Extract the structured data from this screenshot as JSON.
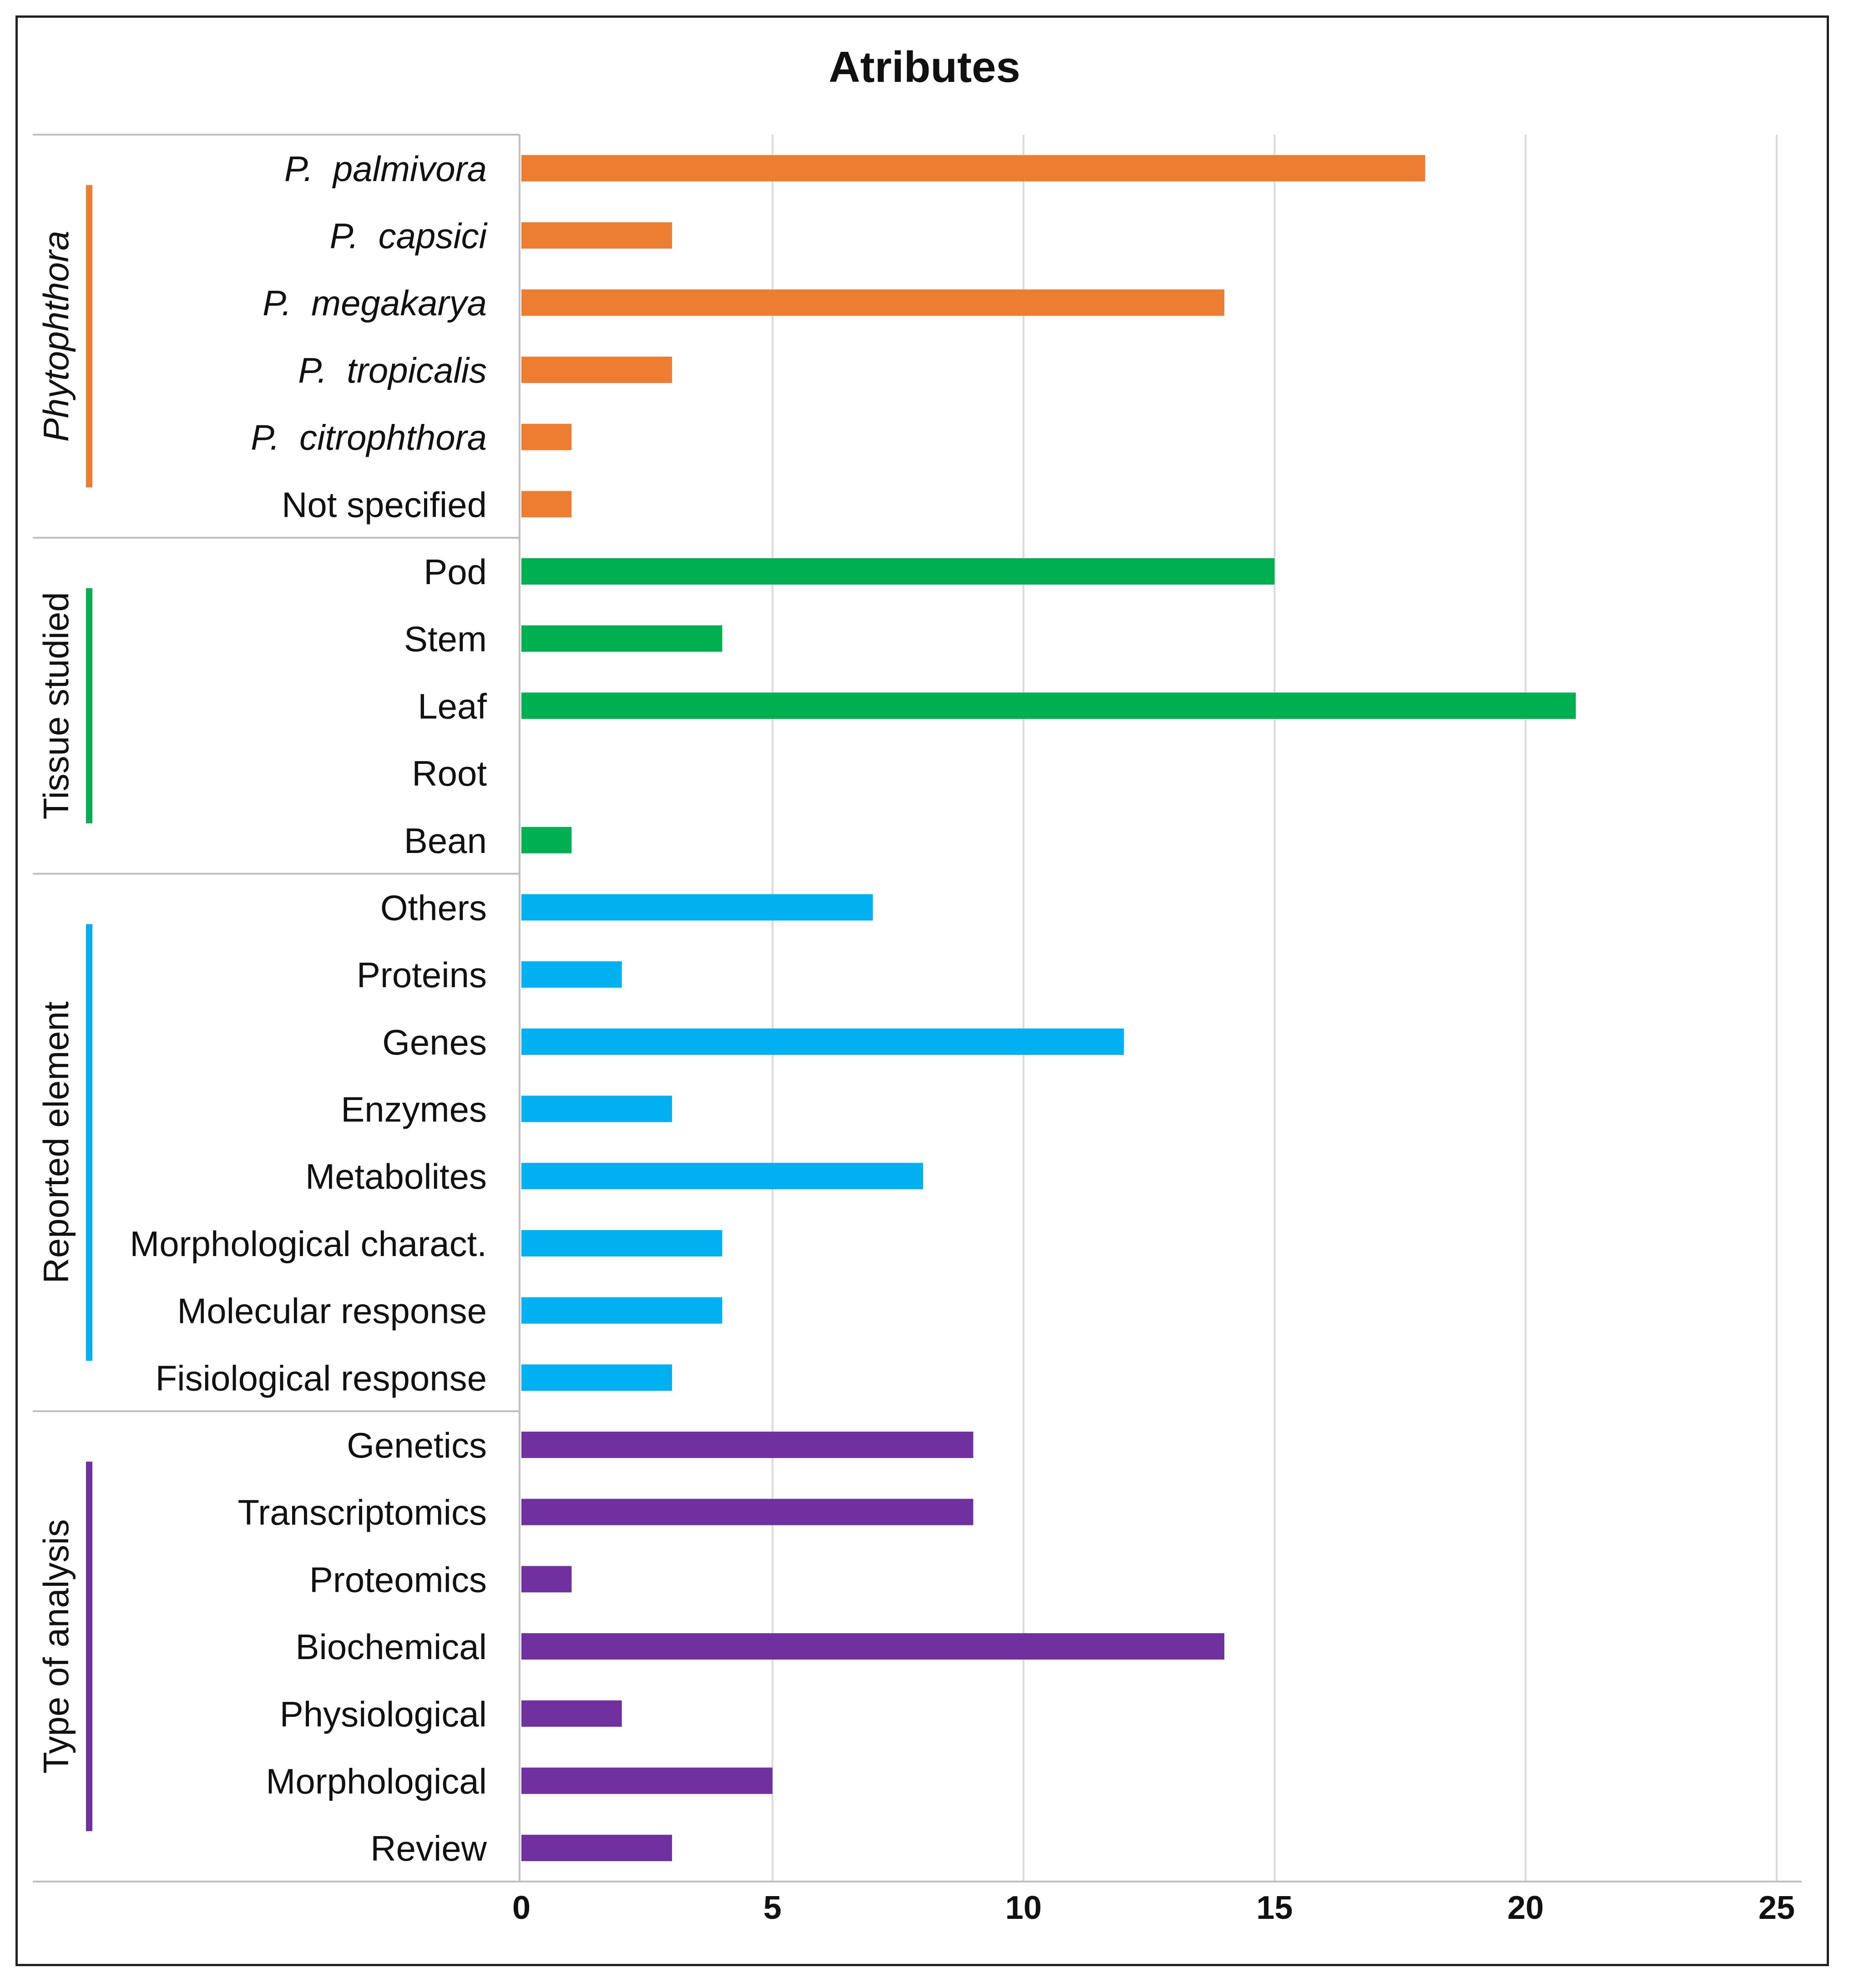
{
  "chart_data": {
    "type": "bar",
    "orientation": "horizontal",
    "title": "Atributes",
    "xlabel": "",
    "ylabel": "",
    "xlim": [
      0,
      25
    ],
    "xticks": [
      "0",
      "5",
      "10",
      "15",
      "20",
      "25"
    ],
    "grid": "vertical",
    "groups": [
      {
        "name": "Phytophthora",
        "italic": true,
        "color": "#ED7D31",
        "categories": [
          {
            "label": "P.  palmivora",
            "value": 18,
            "italic": true
          },
          {
            "label": "P.  capsici",
            "value": 3,
            "italic": true
          },
          {
            "label": "P.  megakarya",
            "value": 14,
            "italic": true
          },
          {
            "label": "P.  tropicalis",
            "value": 3,
            "italic": true
          },
          {
            "label": "P.  citrophthora",
            "value": 1,
            "italic": true
          },
          {
            "label": "Not specified",
            "value": 1,
            "italic": false
          }
        ]
      },
      {
        "name": "Tissue studied",
        "italic": false,
        "color": "#00B050",
        "categories": [
          {
            "label": "Pod",
            "value": 15,
            "italic": false
          },
          {
            "label": "Stem",
            "value": 4,
            "italic": false
          },
          {
            "label": "Leaf",
            "value": 21,
            "italic": false
          },
          {
            "label": "Root",
            "value": 0,
            "italic": false
          },
          {
            "label": "Bean",
            "value": 1,
            "italic": false
          }
        ]
      },
      {
        "name": "Reported element",
        "italic": false,
        "color": "#00B0F0",
        "categories": [
          {
            "label": "Others",
            "value": 7,
            "italic": false
          },
          {
            "label": "Proteins",
            "value": 2,
            "italic": false
          },
          {
            "label": "Genes",
            "value": 12,
            "italic": false
          },
          {
            "label": "Enzymes",
            "value": 3,
            "italic": false
          },
          {
            "label": "Metabolites",
            "value": 8,
            "italic": false
          },
          {
            "label": "Morphological charact.",
            "value": 4,
            "italic": false
          },
          {
            "label": "Molecular response",
            "value": 4,
            "italic": false
          },
          {
            "label": "Fisiological response",
            "value": 3,
            "italic": false
          }
        ]
      },
      {
        "name": "Type of analysis",
        "italic": false,
        "color": "#7030A0",
        "categories": [
          {
            "label": "Genetics",
            "value": 9,
            "italic": false
          },
          {
            "label": "Transcriptomics",
            "value": 9,
            "italic": false
          },
          {
            "label": "Proteomics",
            "value": 1,
            "italic": false
          },
          {
            "label": "Biochemical",
            "value": 14,
            "italic": false
          },
          {
            "label": "Physiological",
            "value": 2,
            "italic": false
          },
          {
            "label": "Morphological",
            "value": 5,
            "italic": false
          },
          {
            "label": "Review",
            "value": 3,
            "italic": false
          }
        ]
      }
    ]
  }
}
